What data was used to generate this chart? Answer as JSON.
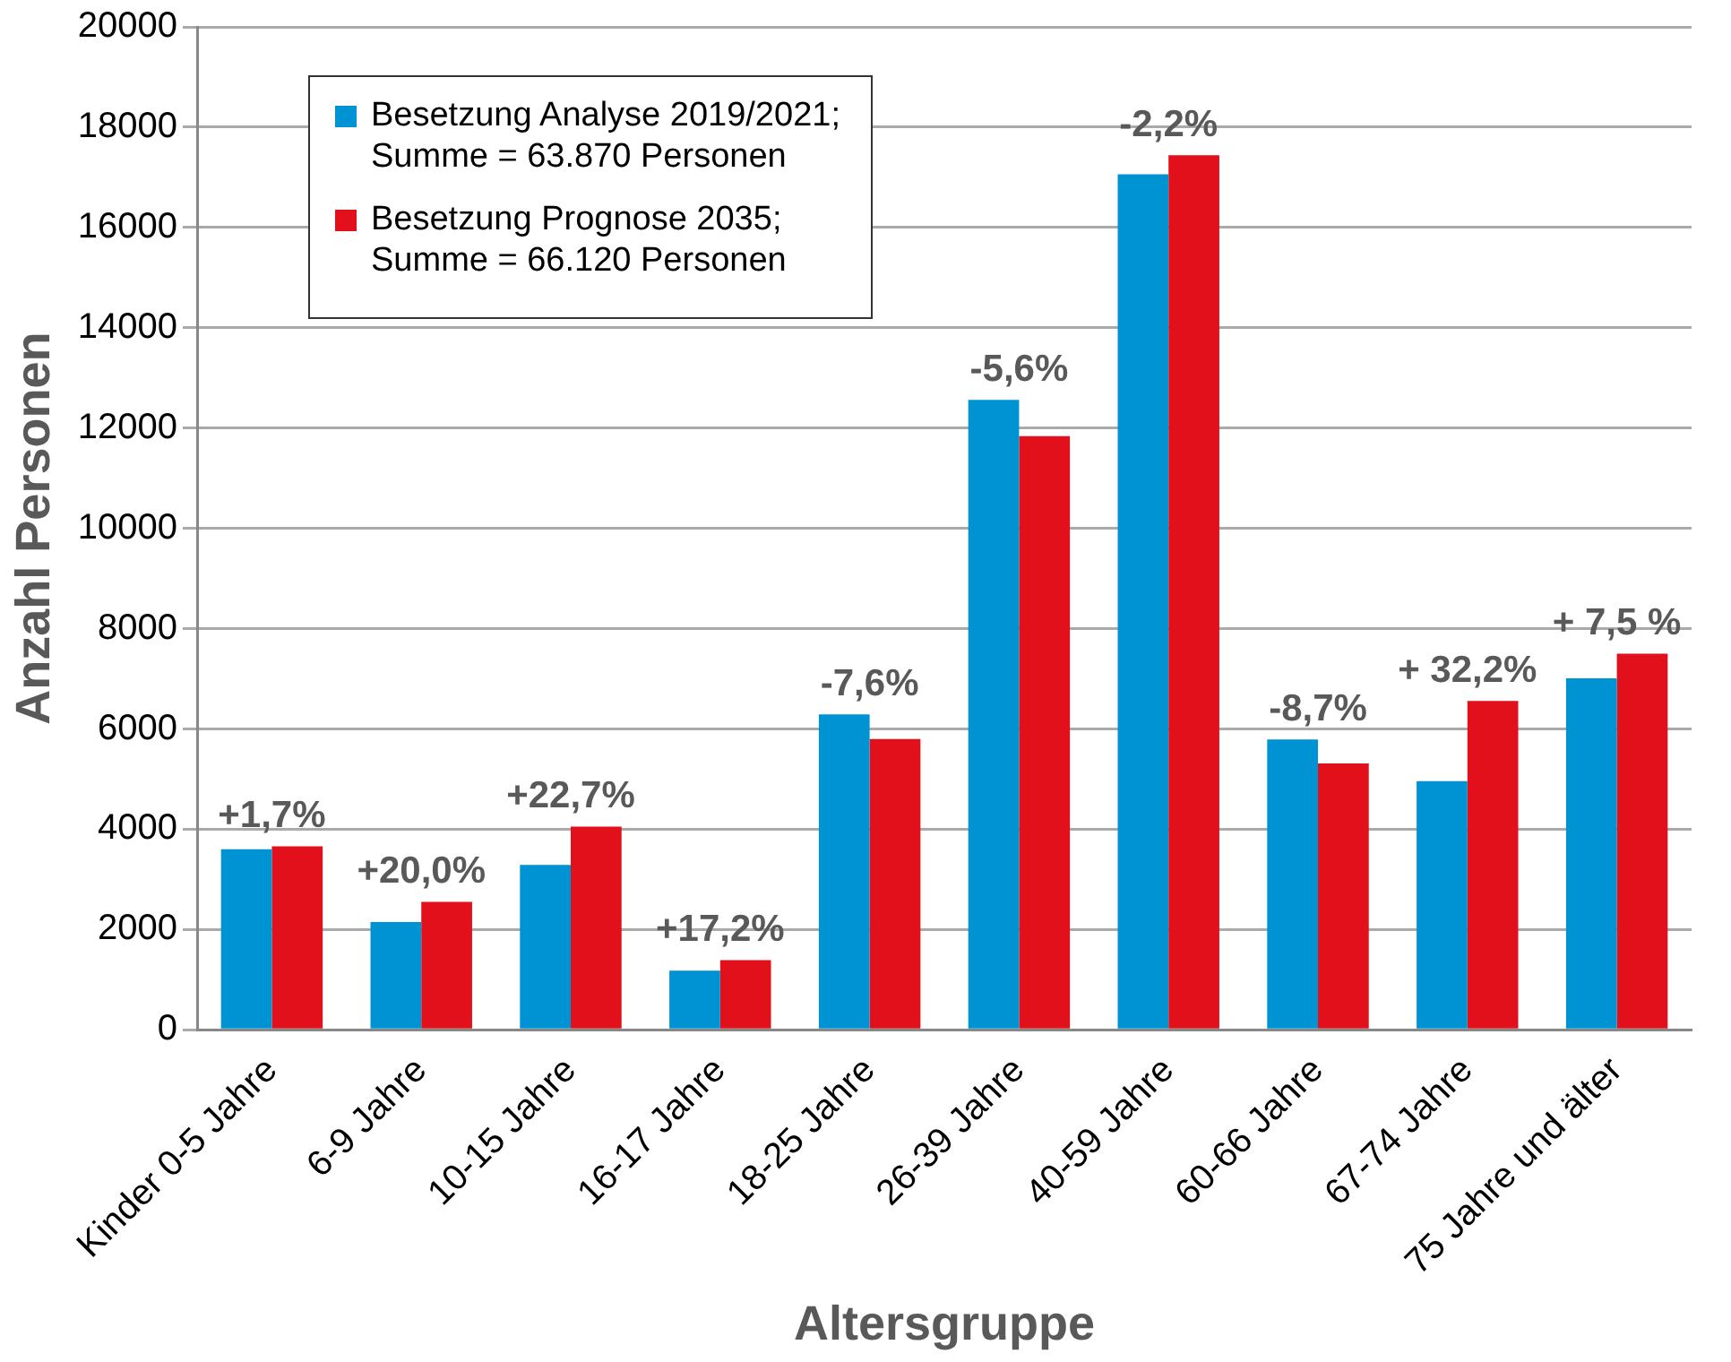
{
  "chart_data": {
    "type": "bar",
    "xlabel": "Altersgruppe",
    "ylabel": "Anzahl Personen",
    "categories": [
      "Kinder 0-5 Jahre",
      "6-9 Jahre",
      "10-15 Jahre",
      "16-17 Jahre",
      "18-25 Jahre",
      "26-39 Jahre",
      "40-59 Jahre",
      "60-66 Jahre",
      "67-74 Jahre",
      "75 Jahre und älter"
    ],
    "series": [
      {
        "name": "Besetzung Analyse 2019/2021; Summe = 63.870 Personen",
        "color": "#0093d3",
        "values": [
          3600,
          2150,
          3290,
          1180,
          6290,
          12560,
          17060,
          5790,
          4960,
          7010
        ]
      },
      {
        "name": "Besetzung Prognose 2035; Summe = 66.120 Personen",
        "color": "#e1101a",
        "values": [
          3660,
          2550,
          4050,
          1390,
          5800,
          11840,
          17440,
          5310,
          6560,
          7500
        ]
      }
    ],
    "ylim": [
      0,
      20000
    ],
    "yticks": [
      0,
      2000,
      4000,
      6000,
      8000,
      10000,
      12000,
      14000,
      16000,
      18000,
      20000
    ],
    "grid": "y",
    "legend": "top left",
    "annotations": [
      {
        "text": "+1,7%",
        "x": "Kinder 0-5 Jahre",
        "y": 3660
      },
      {
        "text": "+20,0%",
        "x": "6-9 Jahre",
        "y": 2550
      },
      {
        "text": "+22,7%",
        "x": "10-15 Jahre",
        "y": 4050
      },
      {
        "text": "+17,2%",
        "x": "16-17 Jahre",
        "y": 1390
      },
      {
        "text": "-7,6%",
        "x": "18-25 Jahre",
        "y": 6290
      },
      {
        "text": "-5,6%",
        "x": "26-39 Jahre",
        "y": 12560
      },
      {
        "text": "-2,2%",
        "x": "40-59 Jahre",
        "y": 17440
      },
      {
        "text": "-8,7%",
        "x": "60-66 Jahre",
        "y": 5790
      },
      {
        "text": "+ 32,2%",
        "x": "67-74 Jahre",
        "y": 6560
      },
      {
        "text": "+ 7,5 %",
        "x": "75 Jahre und älter",
        "y": 7500
      }
    ]
  }
}
